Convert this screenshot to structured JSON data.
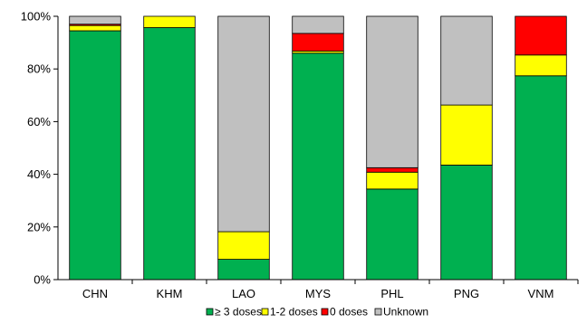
{
  "chart_data": {
    "type": "bar",
    "stacked": true,
    "percent": true,
    "categories": [
      "CHN",
      "KHM",
      "LAO",
      "MYS",
      "PHL",
      "PNG",
      "VNM"
    ],
    "series": [
      {
        "name": "≥ 3 doses",
        "color": "#00B050",
        "values": [
          94.5,
          95.7,
          7.7,
          86.0,
          34.4,
          43.5,
          77.4
        ]
      },
      {
        "name": "1-2 doses",
        "color": "#FFFF00",
        "values": [
          2.0,
          4.3,
          10.5,
          0.8,
          6.4,
          22.8,
          7.9
        ]
      },
      {
        "name": "0 doses",
        "color": "#FF0000",
        "values": [
          0.5,
          0.0,
          0.0,
          6.7,
          1.7,
          0.0,
          14.7
        ]
      },
      {
        "name": "Unknown",
        "color": "#C0C0C0",
        "values": [
          3.0,
          0.0,
          81.8,
          6.5,
          57.5,
          33.7,
          0.0
        ]
      }
    ],
    "y_ticks": [
      "0%",
      "20%",
      "40%",
      "60%",
      "80%",
      "100%"
    ],
    "ylim": [
      0,
      100
    ],
    "title": "",
    "xlabel": "",
    "ylabel": "",
    "grid": false,
    "legend_position": "bottom"
  }
}
